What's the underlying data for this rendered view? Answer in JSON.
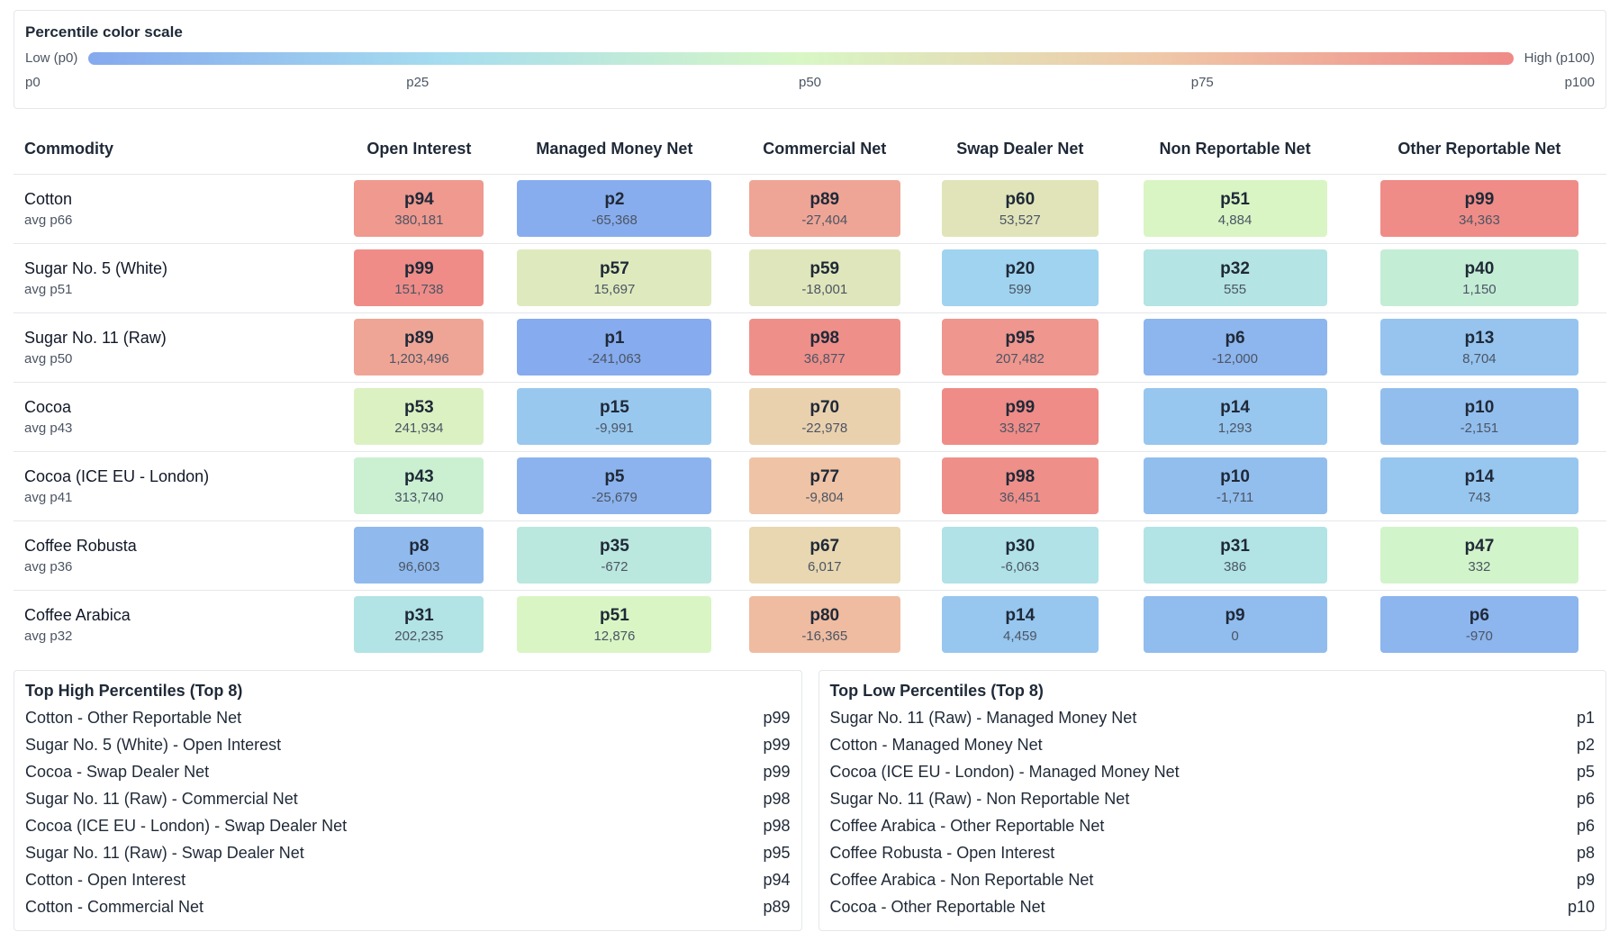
{
  "legend": {
    "title": "Percentile color scale",
    "low_label": "Low (p0)",
    "high_label": "High (p100)",
    "ticks": [
      "p0",
      "p25",
      "p50",
      "p75",
      "p100"
    ]
  },
  "chart_data": {
    "type": "heatmap",
    "color_scale": [
      "#85a9ee",
      "#a6ddef",
      "#d8f7c5",
      "#efc8a8",
      "#ef8a87"
    ],
    "row_header": "Commodity",
    "columns": [
      "Open Interest",
      "Managed Money Net",
      "Commercial Net",
      "Swap Dealer Net",
      "Non Reportable Net",
      "Other Reportable Net"
    ],
    "rows": [
      {
        "name": "Cotton",
        "avg": "avg p66",
        "cells": [
          {
            "p": 94,
            "value": "380,181"
          },
          {
            "p": 2,
            "value": "-65,368"
          },
          {
            "p": 89,
            "value": "-27,404"
          },
          {
            "p": 60,
            "value": "53,527"
          },
          {
            "p": 51,
            "value": "4,884"
          },
          {
            "p": 99,
            "value": "34,363"
          }
        ]
      },
      {
        "name": "Sugar No. 5 (White)",
        "avg": "avg p51",
        "cells": [
          {
            "p": 99,
            "value": "151,738"
          },
          {
            "p": 57,
            "value": "15,697"
          },
          {
            "p": 59,
            "value": "-18,001"
          },
          {
            "p": 20,
            "value": "599"
          },
          {
            "p": 32,
            "value": "555"
          },
          {
            "p": 40,
            "value": "1,150"
          }
        ]
      },
      {
        "name": "Sugar No. 11 (Raw)",
        "avg": "avg p50",
        "cells": [
          {
            "p": 89,
            "value": "1,203,496"
          },
          {
            "p": 1,
            "value": "-241,063"
          },
          {
            "p": 98,
            "value": "36,877"
          },
          {
            "p": 95,
            "value": "207,482"
          },
          {
            "p": 6,
            "value": "-12,000"
          },
          {
            "p": 13,
            "value": "8,704"
          }
        ]
      },
      {
        "name": "Cocoa",
        "avg": "avg p43",
        "cells": [
          {
            "p": 53,
            "value": "241,934"
          },
          {
            "p": 15,
            "value": "-9,991"
          },
          {
            "p": 70,
            "value": "-22,978"
          },
          {
            "p": 99,
            "value": "33,827"
          },
          {
            "p": 14,
            "value": "1,293"
          },
          {
            "p": 10,
            "value": "-2,151"
          }
        ]
      },
      {
        "name": "Cocoa (ICE EU - London)",
        "avg": "avg p41",
        "cells": [
          {
            "p": 43,
            "value": "313,740"
          },
          {
            "p": 5,
            "value": "-25,679"
          },
          {
            "p": 77,
            "value": "-9,804"
          },
          {
            "p": 98,
            "value": "36,451"
          },
          {
            "p": 10,
            "value": "-1,711"
          },
          {
            "p": 14,
            "value": "743"
          }
        ]
      },
      {
        "name": "Coffee Robusta",
        "avg": "avg p36",
        "cells": [
          {
            "p": 8,
            "value": "96,603"
          },
          {
            "p": 35,
            "value": "-672"
          },
          {
            "p": 67,
            "value": "6,017"
          },
          {
            "p": 30,
            "value": "-6,063"
          },
          {
            "p": 31,
            "value": "386"
          },
          {
            "p": 47,
            "value": "332"
          }
        ]
      },
      {
        "name": "Coffee Arabica",
        "avg": "avg p32",
        "cells": [
          {
            "p": 31,
            "value": "202,235"
          },
          {
            "p": 51,
            "value": "12,876"
          },
          {
            "p": 80,
            "value": "-16,365"
          },
          {
            "p": 14,
            "value": "4,459"
          },
          {
            "p": 9,
            "value": "0"
          },
          {
            "p": 6,
            "value": "-970"
          }
        ]
      }
    ]
  },
  "top_high": {
    "title": "Top High Percentiles (Top 8)",
    "items": [
      {
        "label": "Cotton - Other Reportable Net",
        "value": "p99"
      },
      {
        "label": "Sugar No. 5 (White) - Open Interest",
        "value": "p99"
      },
      {
        "label": "Cocoa - Swap Dealer Net",
        "value": "p99"
      },
      {
        "label": "Sugar No. 11 (Raw) - Commercial Net",
        "value": "p98"
      },
      {
        "label": "Cocoa (ICE EU - London) - Swap Dealer Net",
        "value": "p98"
      },
      {
        "label": "Sugar No. 11 (Raw) - Swap Dealer Net",
        "value": "p95"
      },
      {
        "label": "Cotton - Open Interest",
        "value": "p94"
      },
      {
        "label": "Cotton - Commercial Net",
        "value": "p89"
      }
    ]
  },
  "top_low": {
    "title": "Top Low Percentiles (Top 8)",
    "items": [
      {
        "label": "Sugar No. 11 (Raw) - Managed Money Net",
        "value": "p1"
      },
      {
        "label": "Cotton - Managed Money Net",
        "value": "p2"
      },
      {
        "label": "Cocoa (ICE EU - London) - Managed Money Net",
        "value": "p5"
      },
      {
        "label": "Sugar No. 11 (Raw) - Non Reportable Net",
        "value": "p6"
      },
      {
        "label": "Coffee Arabica - Other Reportable Net",
        "value": "p6"
      },
      {
        "label": "Coffee Robusta - Open Interest",
        "value": "p8"
      },
      {
        "label": "Coffee Arabica - Non Reportable Net",
        "value": "p9"
      },
      {
        "label": "Cocoa - Other Reportable Net",
        "value": "p10"
      }
    ]
  }
}
